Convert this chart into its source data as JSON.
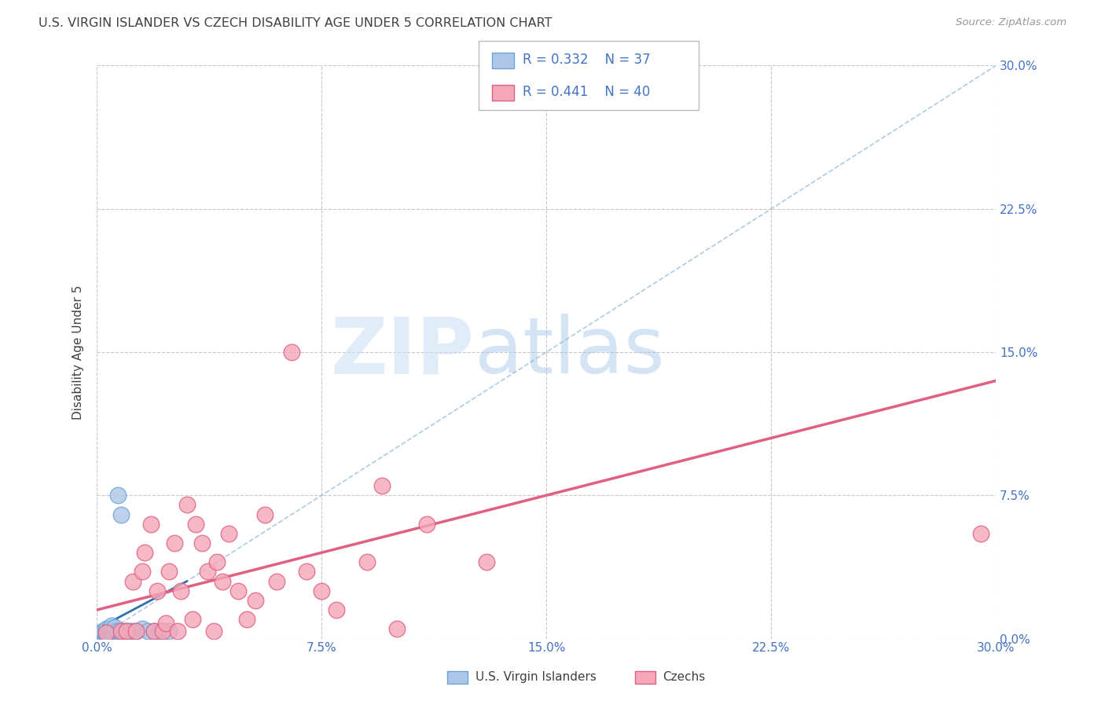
{
  "title": "U.S. VIRGIN ISLANDER VS CZECH DISABILITY AGE UNDER 5 CORRELATION CHART",
  "source": "Source: ZipAtlas.com",
  "ylabel": "Disability Age Under 5",
  "xmin": 0.0,
  "xmax": 0.3,
  "ymin": 0.0,
  "ymax": 0.3,
  "xticks": [
    0.0,
    0.075,
    0.15,
    0.225,
    0.3
  ],
  "yticks": [
    0.0,
    0.075,
    0.15,
    0.225,
    0.3
  ],
  "xtick_labels": [
    "0.0%",
    "7.5%",
    "15.0%",
    "22.5%",
    "30.0%"
  ],
  "ytick_labels": [
    "0.0%",
    "7.5%",
    "15.0%",
    "22.5%",
    "30.0%"
  ],
  "blue_color": "#aec6e8",
  "pink_color": "#f4a7b9",
  "blue_edge": "#6aa3d5",
  "pink_edge": "#e06080",
  "legend_blue_label_R": "R = 0.332",
  "legend_blue_label_N": "N = 37",
  "legend_pink_label_R": "R = 0.441",
  "legend_pink_label_N": "N = 40",
  "legend_color": "#4472c4",
  "blue_scatter_x": [
    0.001,
    0.001,
    0.002,
    0.002,
    0.002,
    0.003,
    0.003,
    0.003,
    0.003,
    0.004,
    0.004,
    0.004,
    0.004,
    0.005,
    0.005,
    0.005,
    0.005,
    0.005,
    0.006,
    0.006,
    0.006,
    0.007,
    0.007,
    0.007,
    0.008,
    0.008,
    0.009,
    0.009,
    0.01,
    0.011,
    0.012,
    0.013,
    0.015,
    0.017,
    0.019,
    0.021,
    0.024
  ],
  "blue_scatter_y": [
    0.002,
    0.003,
    0.002,
    0.003,
    0.004,
    0.002,
    0.003,
    0.004,
    0.005,
    0.002,
    0.003,
    0.004,
    0.005,
    0.002,
    0.003,
    0.004,
    0.005,
    0.007,
    0.003,
    0.004,
    0.006,
    0.003,
    0.004,
    0.075,
    0.003,
    0.065,
    0.003,
    0.004,
    0.004,
    0.004,
    0.004,
    0.004,
    0.005,
    0.004,
    0.004,
    0.004,
    0.004
  ],
  "pink_scatter_x": [
    0.003,
    0.008,
    0.01,
    0.012,
    0.013,
    0.015,
    0.016,
    0.018,
    0.019,
    0.02,
    0.022,
    0.023,
    0.024,
    0.026,
    0.027,
    0.028,
    0.03,
    0.032,
    0.033,
    0.035,
    0.037,
    0.039,
    0.04,
    0.042,
    0.044,
    0.047,
    0.05,
    0.053,
    0.056,
    0.06,
    0.065,
    0.07,
    0.075,
    0.08,
    0.09,
    0.095,
    0.1,
    0.11,
    0.13,
    0.295
  ],
  "pink_scatter_y": [
    0.003,
    0.004,
    0.004,
    0.03,
    0.004,
    0.035,
    0.045,
    0.06,
    0.004,
    0.025,
    0.004,
    0.008,
    0.035,
    0.05,
    0.004,
    0.025,
    0.07,
    0.01,
    0.06,
    0.05,
    0.035,
    0.004,
    0.04,
    0.03,
    0.055,
    0.025,
    0.01,
    0.02,
    0.065,
    0.03,
    0.15,
    0.035,
    0.025,
    0.015,
    0.04,
    0.08,
    0.005,
    0.06,
    0.04,
    0.055
  ],
  "diag_line_x": [
    0.0,
    0.3
  ],
  "diag_line_y": [
    0.0,
    0.3
  ],
  "blue_reg_line_x": [
    0.0,
    0.03
  ],
  "blue_reg_line_y": [
    0.005,
    0.03
  ],
  "pink_line_x": [
    0.0,
    0.3
  ],
  "pink_line_y": [
    0.015,
    0.135
  ],
  "watermark_zip": "ZIP",
  "watermark_atlas": "atlas",
  "background_color": "#ffffff",
  "grid_color": "#c8c8c8",
  "title_color": "#404040",
  "axis_color": "#4472c4",
  "marker_size": 220
}
